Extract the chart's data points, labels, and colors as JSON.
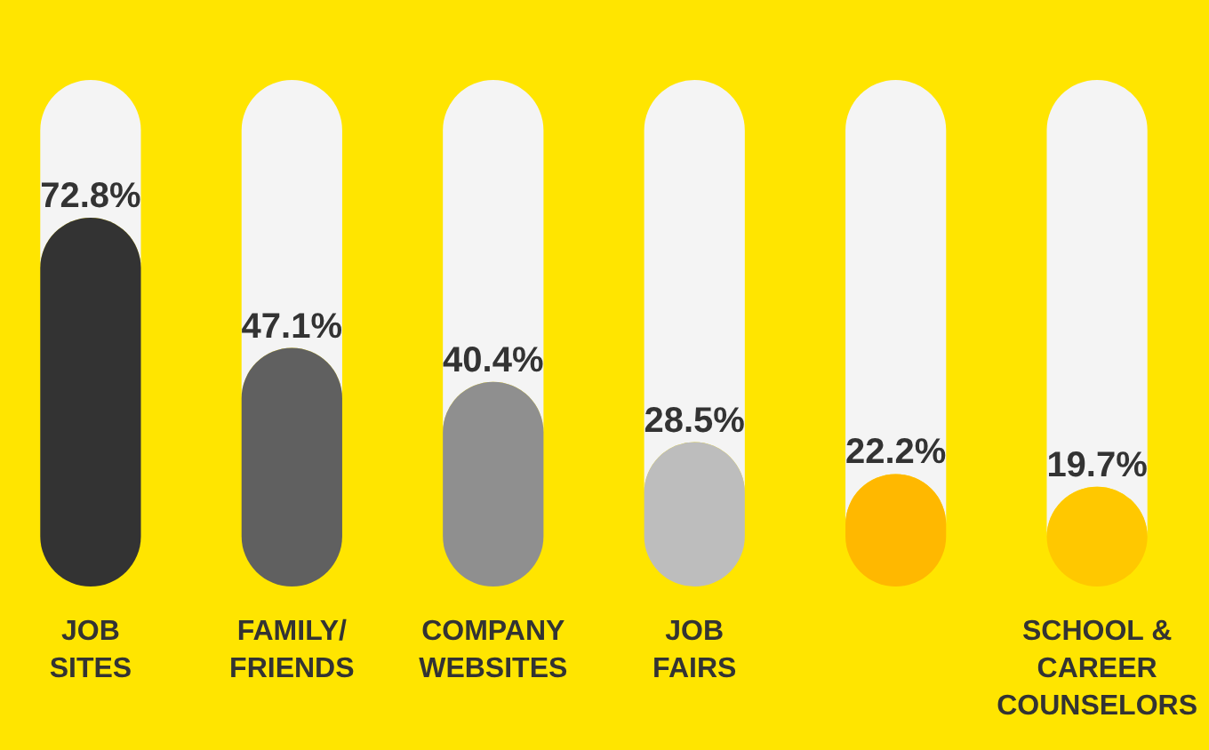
{
  "chart_data": {
    "type": "bar",
    "categories": [
      "JOB SITES",
      "FAMILY/ FRIENDS",
      "COMPANY WEBSITES",
      "JOB FAIRS",
      null,
      "SCHOOL & CAREER COUNSELORS"
    ],
    "values": [
      72.8,
      47.1,
      40.4,
      28.5,
      22.2,
      19.7
    ],
    "colors": [
      "#333333",
      "#606060",
      "#8f8f8f",
      "#bdbdbd",
      "#ffb800",
      "#ffc800"
    ],
    "ylim": [
      0,
      100
    ],
    "value_labels": [
      "72.8%",
      "47.1%",
      "40.4%",
      "28.5%",
      "22.2%",
      "19.7%"
    ]
  }
}
